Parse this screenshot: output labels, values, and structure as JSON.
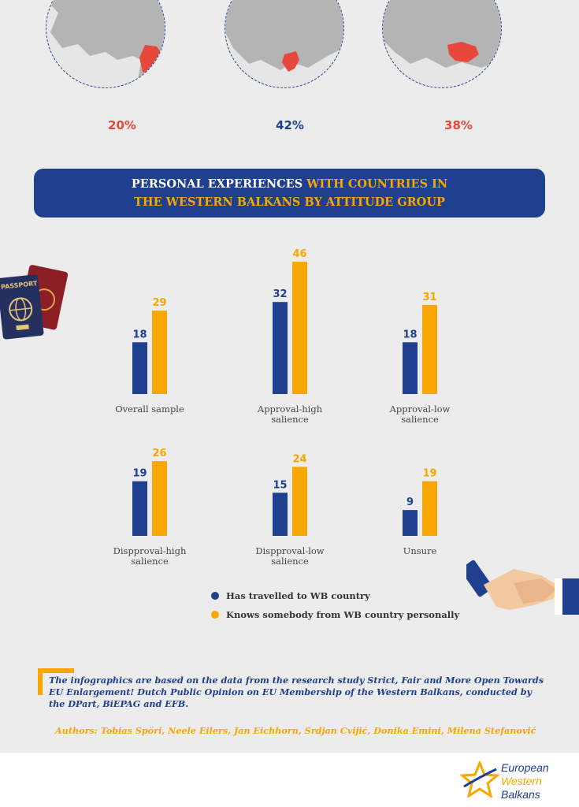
{
  "maps": [
    {
      "percent": "20%",
      "color": "#e8473c"
    },
    {
      "percent": "42%",
      "color": "#1f3f8f"
    },
    {
      "percent": "38%",
      "color": "#e8473c"
    }
  ],
  "banner": {
    "part1": "PERSONAL EXPERIENCES",
    "part2": " WITH COUNTRIES IN",
    "part3": "THE WESTERN BALKANS BY ATTITUDE GROUP"
  },
  "passport": {
    "label": "PASSPORT"
  },
  "chart_data": {
    "type": "bar",
    "categories": [
      "Overall sample",
      "Approval-high salience",
      "Approval-low salience",
      "Dispproval-high salience",
      "Dispproval-low salience",
      "Unsure"
    ],
    "series": [
      {
        "name": "Has travelled to WB country",
        "color": "#1f3f8f",
        "values": [
          18,
          32,
          18,
          19,
          15,
          9
        ]
      },
      {
        "name": "Knows somebody from WB country personally",
        "color": "#f7a700",
        "values": [
          29,
          46,
          31,
          26,
          24,
          19
        ]
      }
    ]
  },
  "note": "The infographics are based on the data from the research study Strict, Fair and More Open Towards EU Enlargement! Dutch Public Opinion on EU Membership of the Western Balkans, conducted by the DPart, BiEPAG and EFB.",
  "authors": "Authors: Tobias Spöri, Neele Eilers, Jan Eichhorn, Srdjan Cvijić, Donika Emini, Milena Stefanović",
  "logo": {
    "line1": "European",
    "line2": "Western",
    "line3": "Balkans"
  }
}
